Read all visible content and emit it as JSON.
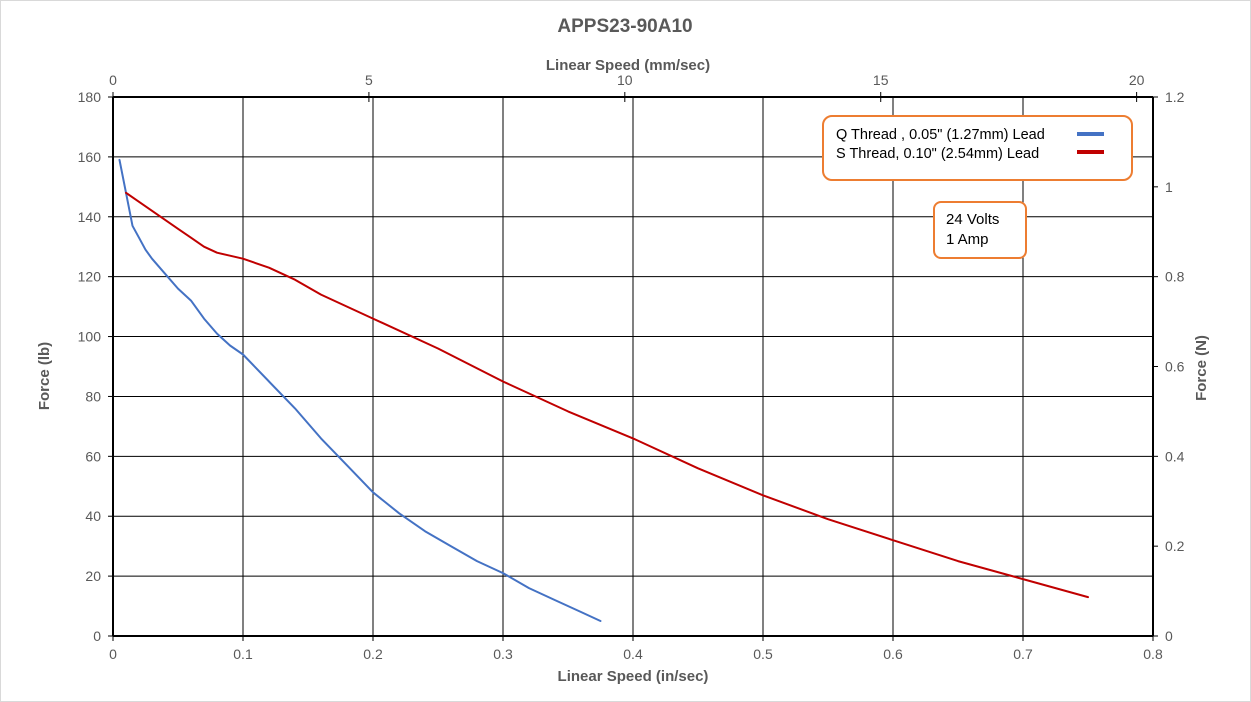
{
  "chart_data": {
    "type": "line",
    "title": "APPS23-90A10",
    "x_bottom": {
      "label": "Linear Speed (in/sec)",
      "range": [
        0,
        0.8
      ],
      "ticks": [
        "0",
        "0.1",
        "0.2",
        "0.3",
        "0.4",
        "0.5",
        "0.6",
        "0.7",
        "0.8"
      ],
      "tick_values": [
        0,
        0.1,
        0.2,
        0.3,
        0.4,
        0.5,
        0.6,
        0.7,
        0.8
      ]
    },
    "x_top": {
      "label": "Linear Speed (mm/sec)",
      "range": [
        0,
        20.32
      ],
      "ticks": [
        "0",
        "5",
        "10",
        "15",
        "20"
      ],
      "tick_values": [
        0,
        5,
        10,
        15,
        20
      ]
    },
    "y_left": {
      "label": "Force (lb)",
      "range": [
        0,
        180
      ],
      "ticks": [
        "0",
        "20",
        "40",
        "60",
        "80",
        "100",
        "120",
        "140",
        "160",
        "180"
      ],
      "tick_values": [
        0,
        20,
        40,
        60,
        80,
        100,
        120,
        140,
        160,
        180
      ]
    },
    "y_right": {
      "label": "Force (N)",
      "range": [
        0,
        1.2
      ],
      "ticks": [
        "0",
        "0.2",
        "0.4",
        "0.6",
        "0.8",
        "1",
        "1.2"
      ],
      "tick_values": [
        0,
        0.2,
        0.4,
        0.6,
        0.8,
        1.0,
        1.2
      ]
    },
    "grid": true,
    "legend_position": "top-right",
    "series": [
      {
        "name": "Q Thread , 0.05\" (1.27mm) Lead",
        "color": "#4472c4",
        "x": [
          0.005,
          0.01,
          0.015,
          0.02,
          0.025,
          0.03,
          0.04,
          0.05,
          0.06,
          0.07,
          0.08,
          0.09,
          0.1,
          0.12,
          0.14,
          0.16,
          0.18,
          0.2,
          0.22,
          0.24,
          0.26,
          0.28,
          0.3,
          0.32,
          0.34,
          0.36,
          0.375
        ],
        "y": [
          159,
          148,
          137,
          133,
          129,
          126,
          121,
          116,
          112,
          106,
          101,
          97,
          94,
          85,
          76,
          66,
          57,
          48,
          41,
          35,
          30,
          25,
          21,
          16,
          12,
          8,
          5
        ]
      },
      {
        "name": "S Thread, 0.10\"  (2.54mm) Lead",
        "color": "#c00000",
        "x": [
          0.01,
          0.02,
          0.03,
          0.04,
          0.05,
          0.06,
          0.07,
          0.08,
          0.09,
          0.1,
          0.12,
          0.14,
          0.16,
          0.2,
          0.25,
          0.3,
          0.35,
          0.4,
          0.45,
          0.5,
          0.55,
          0.6,
          0.65,
          0.7,
          0.75
        ],
        "y": [
          148,
          145,
          142,
          139,
          136,
          133,
          130,
          128,
          127,
          126,
          123,
          119,
          114,
          106,
          96,
          85,
          75,
          66,
          56,
          47,
          39,
          32,
          25,
          19,
          13
        ]
      }
    ],
    "annotation": {
      "line1": "24 Volts",
      "line2": "1 Amp"
    }
  },
  "colors": {
    "frame": "#d9d9d9",
    "grid": "#000000",
    "text": "#595959",
    "box_border": "#ed7d31"
  }
}
